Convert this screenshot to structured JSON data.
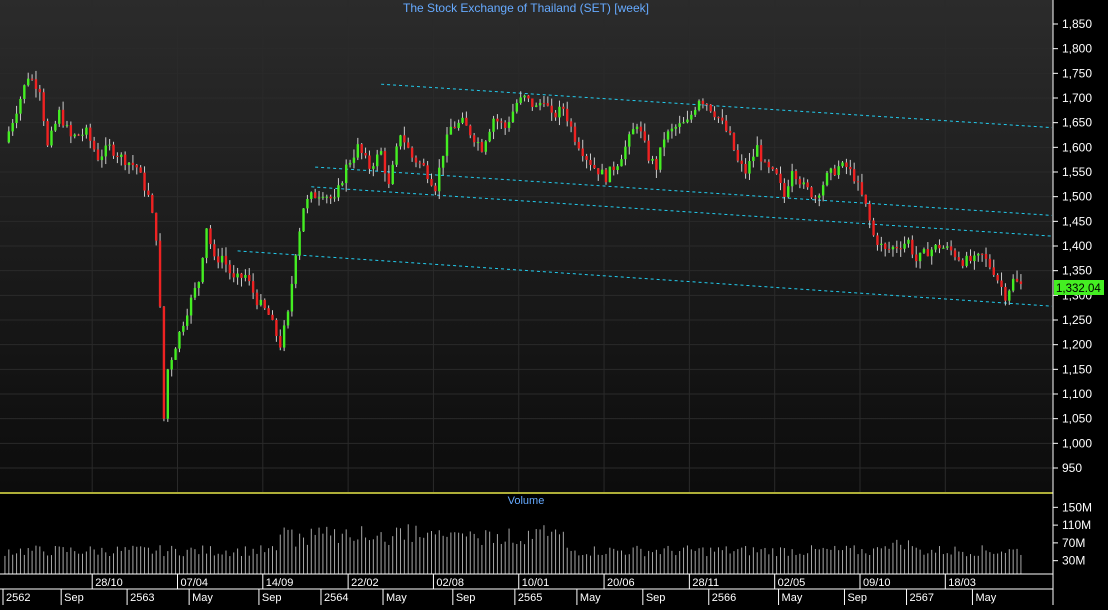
{
  "chart_data": {
    "type": "candlestick",
    "title": "The Stock Exchange of Thailand (SET) [week]",
    "last_price_label": "1,332.04",
    "last_price": 1332.04,
    "price_axis": {
      "ylim": [
        900,
        1880
      ],
      "ticks": [
        950,
        1000,
        1050,
        1100,
        1150,
        1200,
        1250,
        1300,
        1350,
        1400,
        1450,
        1500,
        1550,
        1600,
        1650,
        1700,
        1750,
        1800,
        1850
      ],
      "tick_labels": [
        "950",
        "1,000",
        "1,050",
        "1,100",
        "1,150",
        "1,200",
        "1,250",
        "1,300",
        "1,350",
        "1,400",
        "1,450",
        "1,500",
        "1,550",
        "1,600",
        "1,650",
        "1,700",
        "1,750",
        "1,800",
        "1,850"
      ]
    },
    "volume_panel": {
      "title": "Volume",
      "ylim": [
        0,
        180
      ],
      "ticks": [
        30,
        70,
        110,
        150
      ],
      "tick_labels": [
        "30M",
        "70M",
        "110M",
        "150M"
      ]
    },
    "x_axis": {
      "n_weeks": 270,
      "date_row": [
        {
          "label": "28/10",
          "week": 23
        },
        {
          "label": "07/04",
          "week": 45
        },
        {
          "label": "14/09",
          "week": 67
        },
        {
          "label": "22/02",
          "week": 89
        },
        {
          "label": "02/08",
          "week": 111
        },
        {
          "label": "10/01",
          "week": 133
        },
        {
          "label": "20/06",
          "week": 155
        },
        {
          "label": "28/11",
          "week": 177
        },
        {
          "label": "02/05",
          "week": 199
        },
        {
          "label": "09/10",
          "week": 221
        },
        {
          "label": "18/03",
          "week": 243
        }
      ],
      "period_row": [
        {
          "label": "2562",
          "week": 0
        },
        {
          "label": "Sep",
          "week": 15
        },
        {
          "label": "2563",
          "week": 32
        },
        {
          "label": "May",
          "week": 48
        },
        {
          "label": "Sep",
          "week": 66
        },
        {
          "label": "2564",
          "week": 82
        },
        {
          "label": "May",
          "week": 98
        },
        {
          "label": "Sep",
          "week": 116
        },
        {
          "label": "2565",
          "week": 132
        },
        {
          "label": "May",
          "week": 148
        },
        {
          "label": "Sep",
          "week": 165
        },
        {
          "label": "2566",
          "week": 182
        },
        {
          "label": "May",
          "week": 200
        },
        {
          "label": "Sep",
          "week": 217
        },
        {
          "label": "2567",
          "week": 233
        },
        {
          "label": "May",
          "week": 250
        }
      ]
    },
    "price_anchors": [
      [
        0,
        1610
      ],
      [
        4,
        1700
      ],
      [
        6,
        1745
      ],
      [
        9,
        1720
      ],
      [
        11,
        1600
      ],
      [
        14,
        1670
      ],
      [
        17,
        1620
      ],
      [
        21,
        1630
      ],
      [
        24,
        1580
      ],
      [
        27,
        1600
      ],
      [
        30,
        1580
      ],
      [
        34,
        1560
      ],
      [
        37,
        1500
      ],
      [
        39,
        1420
      ],
      [
        40,
        1270
      ],
      [
        41,
        1050
      ],
      [
        42,
        1150
      ],
      [
        44,
        1200
      ],
      [
        47,
        1270
      ],
      [
        50,
        1330
      ],
      [
        52,
        1440
      ],
      [
        54,
        1370
      ],
      [
        56,
        1380
      ],
      [
        59,
        1330
      ],
      [
        62,
        1340
      ],
      [
        65,
        1290
      ],
      [
        68,
        1260
      ],
      [
        71,
        1200
      ],
      [
        73,
        1260
      ],
      [
        75,
        1390
      ],
      [
        77,
        1480
      ],
      [
        79,
        1500
      ],
      [
        82,
        1510
      ],
      [
        85,
        1490
      ],
      [
        88,
        1560
      ],
      [
        91,
        1600
      ],
      [
        94,
        1560
      ],
      [
        97,
        1590
      ],
      [
        99,
        1520
      ],
      [
        102,
        1630
      ],
      [
        105,
        1580
      ],
      [
        108,
        1560
      ],
      [
        111,
        1520
      ],
      [
        113,
        1590
      ],
      [
        115,
        1640
      ],
      [
        118,
        1650
      ],
      [
        121,
        1620
      ],
      [
        123,
        1600
      ],
      [
        126,
        1660
      ],
      [
        129,
        1640
      ],
      [
        132,
        1690
      ],
      [
        134,
        1700
      ],
      [
        137,
        1680
      ],
      [
        139,
        1700
      ],
      [
        141,
        1660
      ],
      [
        144,
        1680
      ],
      [
        147,
        1620
      ],
      [
        150,
        1580
      ],
      [
        152,
        1560
      ],
      [
        155,
        1540
      ],
      [
        158,
        1570
      ],
      [
        160,
        1600
      ],
      [
        163,
        1650
      ],
      [
        166,
        1580
      ],
      [
        168,
        1560
      ],
      [
        170,
        1620
      ],
      [
        173,
        1640
      ],
      [
        176,
        1650
      ],
      [
        179,
        1700
      ],
      [
        181,
        1690
      ],
      [
        184,
        1660
      ],
      [
        187,
        1620
      ],
      [
        189,
        1570
      ],
      [
        191,
        1550
      ],
      [
        194,
        1600
      ],
      [
        196,
        1560
      ],
      [
        199,
        1540
      ],
      [
        201,
        1500
      ],
      [
        203,
        1560
      ],
      [
        206,
        1520
      ],
      [
        209,
        1500
      ],
      [
        212,
        1540
      ],
      [
        215,
        1560
      ],
      [
        217,
        1560
      ],
      [
        219,
        1540
      ],
      [
        222,
        1480
      ],
      [
        224,
        1420
      ],
      [
        227,
        1390
      ],
      [
        230,
        1400
      ],
      [
        233,
        1410
      ],
      [
        235,
        1370
      ],
      [
        238,
        1390
      ],
      [
        241,
        1400
      ],
      [
        244,
        1390
      ],
      [
        247,
        1370
      ],
      [
        250,
        1370
      ],
      [
        252,
        1380
      ],
      [
        255,
        1350
      ],
      [
        258,
        1300
      ],
      [
        260,
        1330
      ],
      [
        262,
        1320
      ]
    ],
    "trendlines": [
      {
        "from": [
          97,
          1728
        ],
        "to": [
          270,
          1640
        ]
      },
      {
        "from": [
          80,
          1560
        ],
        "to": [
          270,
          1462
        ]
      },
      {
        "from": [
          79,
          1520
        ],
        "to": [
          270,
          1420
        ]
      },
      {
        "from": [
          60,
          1390
        ],
        "to": [
          270,
          1278
        ]
      }
    ],
    "colors": {
      "background": "#000000",
      "price_panel_top": "#2b2b2b",
      "price_panel_bottom": "#0c0c0c",
      "up_candle": "#44ee22",
      "down_candle": "#ee2222",
      "wick": "#cccccc",
      "grid": "#2a2a2a",
      "title": "#66aaff",
      "axis_text": "#ffffff",
      "trendline": "#22ccee",
      "separator": "#e8e84a",
      "price_label_bg": "#44ee22",
      "volume_bar": "#a8a8a8"
    }
  }
}
